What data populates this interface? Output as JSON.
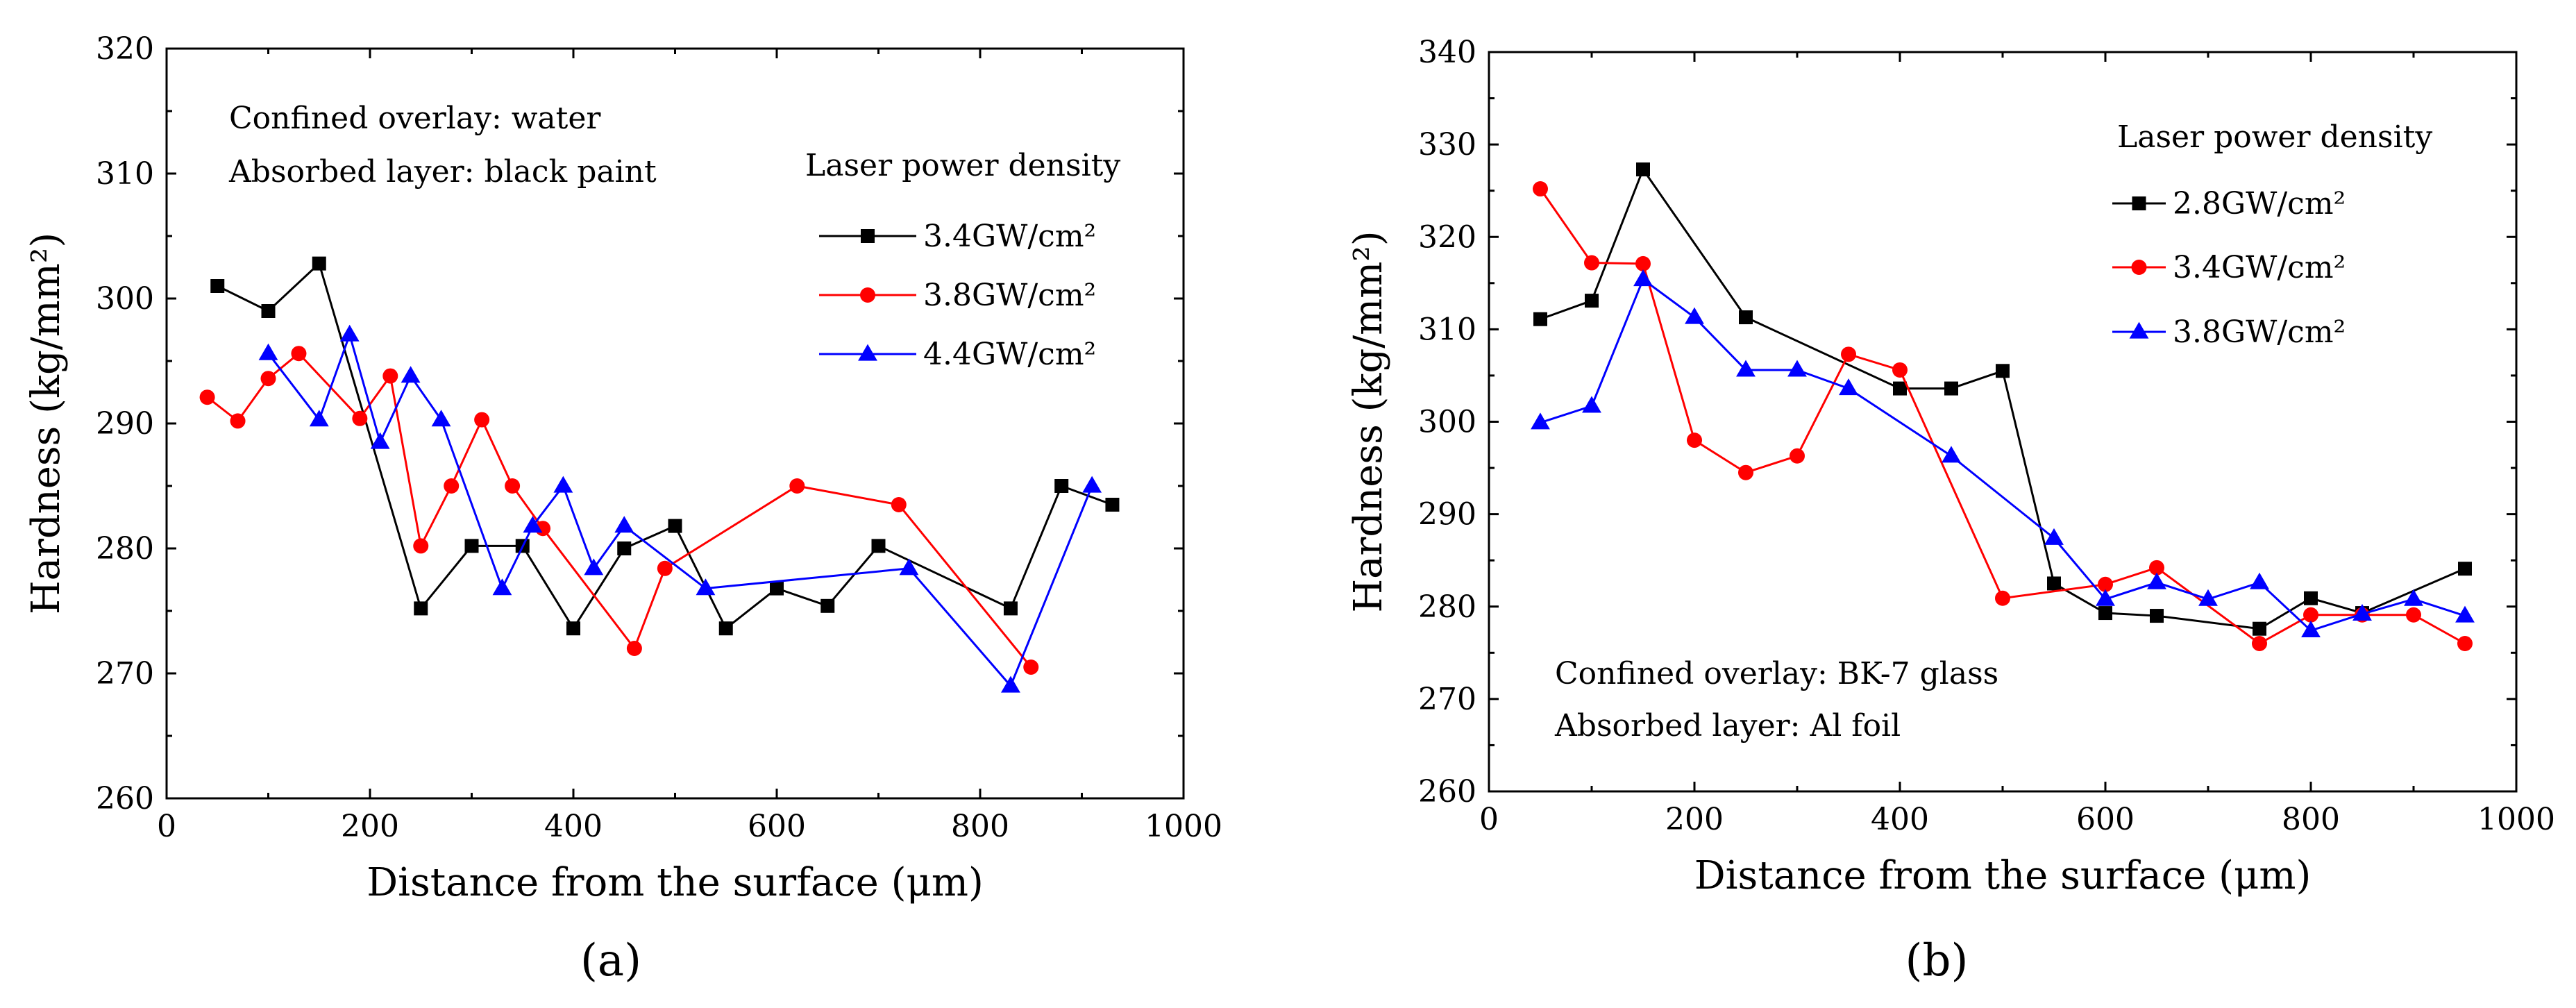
{
  "chart_data": [
    {
      "type": "line",
      "panel_label": "(a)",
      "xlabel": "Distance from the surface (μm)",
      "ylabel": "Hardness (kg/mm²)",
      "xlim": [
        0,
        1000
      ],
      "ylim": [
        260,
        320
      ],
      "xticks": [
        0,
        200,
        400,
        600,
        800,
        1000
      ],
      "yticks": [
        260,
        270,
        280,
        290,
        300,
        310,
        320
      ],
      "annotations": [
        "Confined overlay: water",
        "Absorbed layer: black paint"
      ],
      "legend_title": "Laser power density",
      "legend_position": "upper-right",
      "series": [
        {
          "name": "3.4GW/cm²",
          "color": "#000000",
          "marker": "square",
          "x": [
            50,
            100,
            150,
            250,
            300,
            350,
            400,
            450,
            500,
            550,
            600,
            650,
            700,
            830,
            880,
            930
          ],
          "y": [
            301,
            299,
            302.8,
            275.2,
            280.2,
            280.2,
            273.6,
            280,
            281.8,
            273.6,
            276.8,
            275.4,
            280.2,
            275.2,
            285,
            283.5
          ]
        },
        {
          "name": "3.8GW/cm²",
          "color": "#ff0000",
          "marker": "circle",
          "x": [
            40,
            70,
            100,
            130,
            190,
            220,
            250,
            280,
            310,
            340,
            370,
            460,
            490,
            620,
            720,
            850
          ],
          "y": [
            292.1,
            290.2,
            293.6,
            295.6,
            290.4,
            293.8,
            280.2,
            285,
            290.3,
            285,
            281.6,
            272,
            278.4,
            285,
            283.5,
            270.5
          ]
        },
        {
          "name": "4.4GW/cm²",
          "color": "#0000ff",
          "marker": "triangle",
          "x": [
            100,
            150,
            180,
            210,
            240,
            270,
            330,
            360,
            390,
            420,
            450,
            530,
            730,
            830,
            910
          ],
          "y": [
            295.6,
            290.3,
            297.1,
            288.5,
            293.8,
            290.3,
            276.8,
            281.8,
            285,
            278.4,
            281.8,
            276.8,
            278.4,
            269,
            285
          ]
        }
      ]
    },
    {
      "type": "line",
      "panel_label": "(b)",
      "xlabel": "Distance from the surface (μm)",
      "ylabel": "Hardness (kg/mm²)",
      "xlim": [
        0,
        1000
      ],
      "ylim": [
        260,
        340
      ],
      "xticks": [
        0,
        200,
        400,
        600,
        800,
        1000
      ],
      "yticks": [
        260,
        270,
        280,
        290,
        300,
        310,
        320,
        330,
        340
      ],
      "annotations": [
        "Confined overlay: BK-7 glass",
        "Absorbed layer: Al foil"
      ],
      "legend_title": "Laser power density",
      "legend_position": "upper-right",
      "series": [
        {
          "name": "2.8GW/cm²",
          "color": "#000000",
          "marker": "square",
          "x": [
            50,
            100,
            150,
            250,
            400,
            450,
            500,
            550,
            600,
            650,
            750,
            800,
            850,
            950
          ],
          "y": [
            311.1,
            313.1,
            327.3,
            311.3,
            303.6,
            303.6,
            305.5,
            282.5,
            279.3,
            279,
            277.6,
            280.9,
            279.3,
            284.1
          ]
        },
        {
          "name": "3.4GW/cm²",
          "color": "#ff0000",
          "marker": "circle",
          "x": [
            50,
            100,
            150,
            200,
            250,
            300,
            350,
            400,
            500,
            600,
            650,
            750,
            800,
            850,
            900,
            950
          ],
          "y": [
            325.2,
            317.2,
            317.1,
            298,
            294.5,
            296.3,
            307.3,
            305.6,
            280.9,
            282.4,
            284.2,
            276,
            279.1,
            279.1,
            279.1,
            276
          ]
        },
        {
          "name": "3.8GW/cm²",
          "color": "#0000ff",
          "marker": "triangle",
          "x": [
            50,
            100,
            150,
            200,
            250,
            300,
            350,
            450,
            550,
            600,
            650,
            700,
            750,
            800,
            850,
            900,
            950
          ],
          "y": [
            299.9,
            301.7,
            315.4,
            311.3,
            305.6,
            305.6,
            303.6,
            296.3,
            287.4,
            280.8,
            282.6,
            280.8,
            282.6,
            277.4,
            279.2,
            280.8,
            279
          ]
        }
      ]
    }
  ]
}
